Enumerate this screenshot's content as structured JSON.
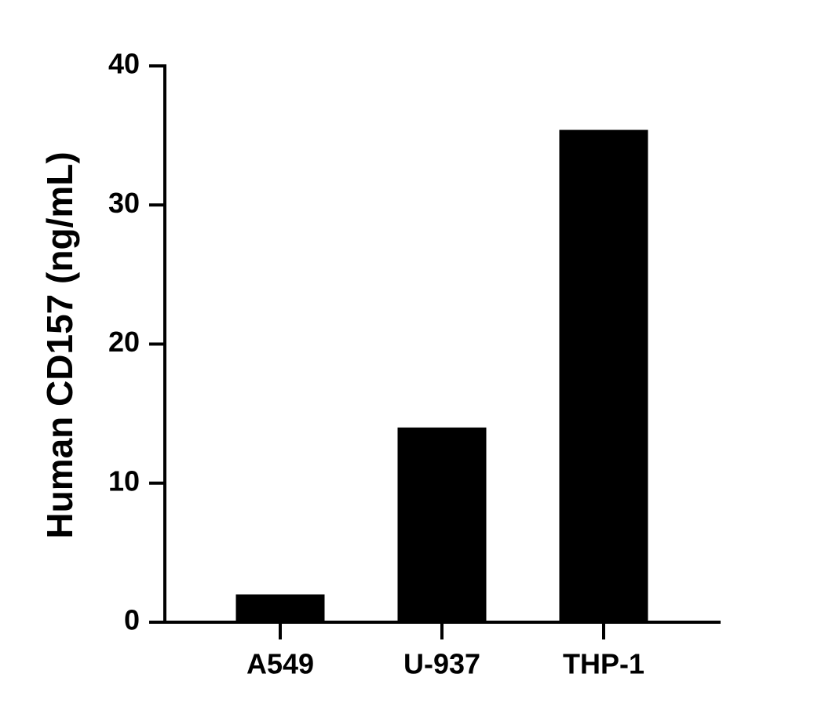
{
  "chart_data": {
    "type": "bar",
    "y_label": "Human CD157 (ng/mL)",
    "categories": [
      "A549",
      "U-937",
      "THP-1"
    ],
    "values": [
      2.0,
      14.0,
      35.4
    ],
    "color": "#000000",
    "ylim": [
      0,
      40
    ],
    "yticks": [
      0,
      10,
      20,
      30,
      40
    ],
    "grid": false
  }
}
